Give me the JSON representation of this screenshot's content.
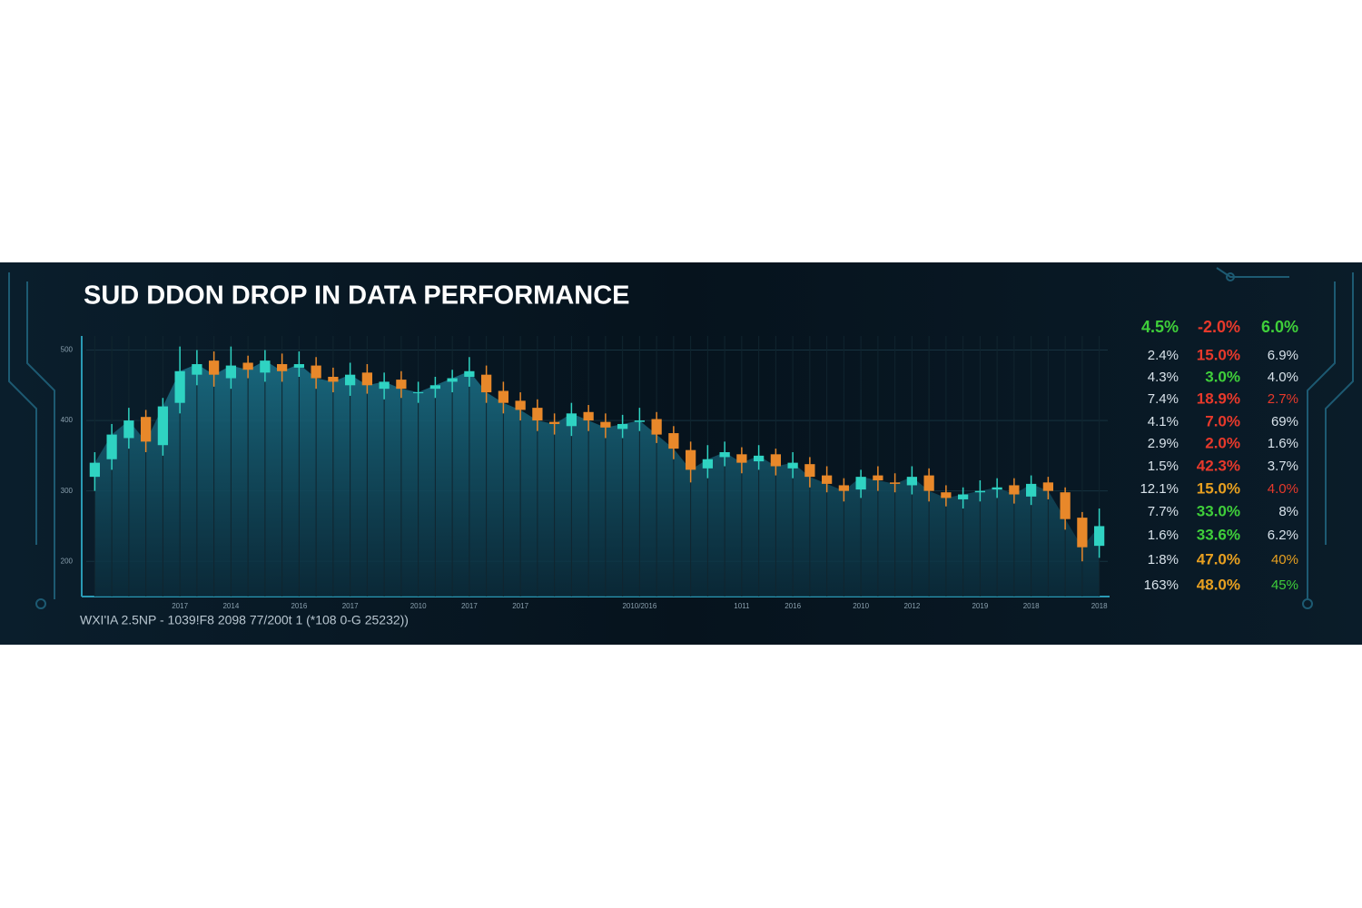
{
  "chart_data": {
    "type": "candlestick",
    "title": "SUD DDON DROP IN DATA PERFORMANCE",
    "categories": [
      null,
      null,
      null,
      null,
      null,
      "2017",
      null,
      null,
      "2014",
      null,
      null,
      null,
      "2016",
      null,
      null,
      "2017",
      null,
      null,
      null,
      "2010",
      null,
      null,
      "2017",
      null,
      null,
      "2017",
      null,
      null,
      null,
      null,
      null,
      null,
      "2010/2016",
      null,
      null,
      null,
      null,
      null,
      "1011",
      null,
      null,
      "2016",
      null,
      null,
      null,
      "2010",
      null,
      null,
      "2012",
      null,
      null,
      null,
      "2019",
      null,
      null,
      "2018",
      null,
      null,
      null,
      "2018"
    ],
    "open": [
      320,
      345,
      375,
      405,
      365,
      425,
      465,
      485,
      460,
      482,
      468,
      480,
      475,
      478,
      462,
      450,
      468,
      445,
      458,
      440,
      445,
      455,
      462,
      465,
      442,
      428,
      418,
      398,
      392,
      412,
      398,
      388,
      398,
      402,
      382,
      358,
      332,
      348,
      352,
      342,
      352,
      332,
      338,
      322,
      308,
      302,
      322,
      312,
      308,
      322,
      298,
      288,
      298,
      302,
      308,
      292,
      312,
      298,
      262,
      222
    ],
    "high": [
      355,
      395,
      418,
      415,
      432,
      505,
      500,
      498,
      505,
      492,
      500,
      495,
      498,
      490,
      475,
      482,
      480,
      468,
      470,
      455,
      462,
      472,
      490,
      478,
      455,
      440,
      430,
      410,
      425,
      422,
      410,
      408,
      418,
      412,
      392,
      370,
      365,
      370,
      362,
      365,
      360,
      355,
      348,
      335,
      318,
      330,
      335,
      325,
      335,
      332,
      308,
      305,
      315,
      318,
      318,
      322,
      320,
      305,
      270,
      275
    ],
    "low": [
      300,
      330,
      360,
      355,
      350,
      410,
      450,
      448,
      445,
      460,
      455,
      455,
      462,
      445,
      440,
      435,
      438,
      430,
      432,
      425,
      432,
      440,
      448,
      425,
      410,
      400,
      385,
      380,
      378,
      385,
      375,
      375,
      385,
      368,
      345,
      312,
      318,
      335,
      325,
      330,
      322,
      318,
      305,
      298,
      285,
      290,
      300,
      298,
      295,
      285,
      278,
      275,
      285,
      290,
      282,
      280,
      288,
      245,
      200,
      205
    ],
    "close": [
      340,
      380,
      400,
      370,
      420,
      470,
      480,
      465,
      478,
      472,
      485,
      470,
      480,
      460,
      455,
      465,
      450,
      455,
      445,
      440,
      450,
      460,
      470,
      440,
      425,
      415,
      400,
      395,
      410,
      400,
      390,
      395,
      400,
      380,
      360,
      330,
      345,
      355,
      340,
      350,
      335,
      340,
      320,
      310,
      300,
      320,
      315,
      310,
      320,
      300,
      290,
      295,
      300,
      305,
      295,
      310,
      300,
      260,
      220,
      250
    ],
    "up_color": "#2fd3c2",
    "down_color": "#e8882a",
    "ylim": [
      150,
      520
    ],
    "yticks": [
      200,
      300,
      400,
      500
    ],
    "grid": true
  },
  "table": {
    "rows": [
      [
        "4.5%",
        "-2.0%",
        "6.0%"
      ],
      [
        "2.4%",
        "15.0%",
        "6.9%"
      ],
      [
        "4.3%",
        "3.0%",
        "4.0%"
      ],
      [
        "7.4%",
        "18.9%",
        "2.7%"
      ],
      [
        "4.1%",
        "7.0%",
        "69%"
      ],
      [
        "2.9%",
        "2.0%",
        "1.6%"
      ],
      [
        "1.5%",
        "42.3%",
        "3.7%"
      ],
      [
        "12.1%",
        "15.0%",
        "4.0%"
      ],
      [
        "7.7%",
        "33.0%",
        "8%"
      ],
      [
        "1.6%",
        "33.6%",
        "6.2%"
      ],
      [
        "1:8%",
        "47.0%",
        "40%"
      ],
      [
        "163%",
        "48.0%",
        "45%"
      ]
    ],
    "colors": [
      [
        "#3fcf3a",
        "#e8392b",
        "#3fcf3a"
      ],
      [
        "#d8e2ea",
        "#e8392b",
        "#d8e2ea"
      ],
      [
        "#d8e2ea",
        "#3fcf3a",
        "#d8e2ea"
      ],
      [
        "#d8e2ea",
        "#e8392b",
        "#e8392b"
      ],
      [
        "#d8e2ea",
        "#e8392b",
        "#d8e2ea"
      ],
      [
        "#d8e2ea",
        "#e8392b",
        "#d8e2ea"
      ],
      [
        "#d8e2ea",
        "#e8392b",
        "#d8e2ea"
      ],
      [
        "#d8e2ea",
        "#e8a020",
        "#e8392b"
      ],
      [
        "#d8e2ea",
        "#3fcf3a",
        "#d8e2ea"
      ],
      [
        "#d8e2ea",
        "#3fcf3a",
        "#d8e2ea"
      ],
      [
        "#d8e2ea",
        "#e8a020",
        "#e8a020"
      ],
      [
        "#d8e2ea",
        "#e8a020",
        "#3fcf3a"
      ]
    ]
  },
  "footer": "WXI'IA 2.5NP - 1039!F8 2098 77/200t 1 (*108 0-G 25232))"
}
